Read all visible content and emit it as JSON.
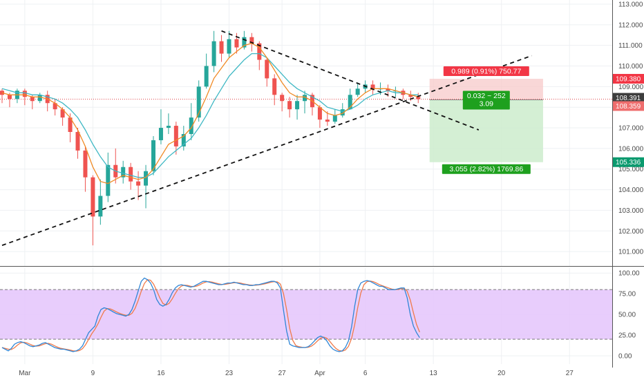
{
  "chart_data": {
    "type": "candlestick",
    "x_ticks": [
      "Mar",
      "9",
      "16",
      "23",
      "27",
      "Apr",
      "6",
      "13",
      "20",
      "27"
    ],
    "y_ticks": [
      "101.000",
      "102.000",
      "103.000",
      "104.000",
      "105.000",
      "106.000",
      "107.000",
      "108.000",
      "109.000",
      "110.000",
      "111.000",
      "112.000",
      "113.000"
    ],
    "ylim": [
      100.3,
      113.2
    ],
    "grid": true,
    "price_labels": {
      "stop_loss": "109.380",
      "current": "108.391",
      "entry": "108.359",
      "target": "105.336"
    },
    "colors": {
      "up": "#26a69a",
      "down": "#ef5350",
      "ma_fast": "#f08a24",
      "ma_slow": "#3fb8c4",
      "stop_box": "#f7c9c9",
      "target_box": "#cdeccd",
      "stop_tag": "#f23645",
      "profit_tag": "#1ea01e",
      "current_tag": "#3d3d3d",
      "entry_tag": "#ef6e6e",
      "target_tag": "#0a9a6e",
      "osc_band": "#e4c4fb",
      "osc_k": "#2f86d6",
      "osc_d": "#f07a4a"
    },
    "position": {
      "stop_text": "0.989 (0.91%) 750.77",
      "center_text": "0.032 ~ 252",
      "center_text2": "3.09",
      "target_text": "3.055 (2.82%) 1769.86"
    },
    "trendlines": [
      {
        "name": "lower-trendline",
        "points": [
          [
            0,
            101.3
          ],
          [
            70,
            110.5
          ]
        ]
      },
      {
        "name": "upper-trendline",
        "points": [
          [
            29,
            111.7
          ],
          [
            63,
            106.9
          ]
        ]
      }
    ],
    "candles": [
      [
        108.8,
        108.6,
        108.9,
        108.2
      ],
      [
        108.6,
        108.4,
        108.7,
        108.0
      ],
      [
        108.4,
        108.8,
        108.9,
        108.2
      ],
      [
        108.8,
        108.5,
        108.9,
        108.1
      ],
      [
        108.5,
        108.3,
        108.6,
        107.9
      ],
      [
        108.3,
        108.6,
        108.7,
        108.2
      ],
      [
        108.6,
        108.2,
        108.8,
        107.8
      ],
      [
        108.2,
        107.9,
        108.4,
        107.6
      ],
      [
        107.9,
        107.5,
        108.0,
        107.1
      ],
      [
        107.5,
        106.8,
        107.7,
        106.3
      ],
      [
        106.8,
        105.9,
        107.0,
        105.5
      ],
      [
        105.9,
        104.6,
        106.1,
        103.9
      ],
      [
        104.6,
        102.7,
        104.7,
        101.3
      ],
      [
        102.7,
        103.7,
        104.5,
        102.3
      ],
      [
        103.7,
        105.2,
        105.8,
        103.4
      ],
      [
        105.2,
        104.6,
        106.0,
        104.3
      ],
      [
        104.6,
        105.1,
        105.4,
        104.3
      ],
      [
        105.1,
        104.4,
        105.3,
        104.0
      ],
      [
        104.4,
        104.2,
        104.9,
        103.5
      ],
      [
        104.2,
        104.9,
        105.2,
        103.1
      ],
      [
        104.9,
        106.4,
        106.6,
        104.7
      ],
      [
        106.4,
        107.0,
        107.9,
        106.2
      ],
      [
        107.0,
        107.1,
        107.7,
        106.7
      ],
      [
        107.1,
        106.1,
        107.3,
        105.7
      ],
      [
        106.1,
        106.7,
        107.1,
        105.9
      ],
      [
        106.7,
        107.5,
        108.2,
        106.4
      ],
      [
        107.5,
        109.0,
        109.3,
        107.3
      ],
      [
        109.0,
        110.0,
        110.6,
        108.9
      ],
      [
        110.0,
        111.2,
        111.7,
        109.7
      ],
      [
        111.2,
        110.6,
        111.5,
        110.2
      ],
      [
        110.6,
        111.3,
        111.7,
        110.4
      ],
      [
        111.3,
        110.9,
        111.6,
        110.6
      ],
      [
        110.9,
        111.4,
        111.7,
        110.8
      ],
      [
        111.4,
        111.1,
        111.6,
        110.7
      ],
      [
        111.1,
        110.3,
        111.2,
        109.8
      ],
      [
        110.3,
        109.4,
        110.4,
        109.0
      ],
      [
        109.4,
        108.6,
        109.6,
        108.1
      ],
      [
        108.6,
        108.3,
        108.7,
        107.8
      ],
      [
        108.3,
        107.9,
        108.5,
        107.5
      ],
      [
        107.9,
        108.3,
        108.6,
        107.4
      ],
      [
        108.3,
        108.6,
        108.8,
        107.7
      ],
      [
        108.6,
        108.0,
        108.7,
        107.6
      ],
      [
        108.0,
        107.4,
        108.1,
        107.0
      ],
      [
        107.4,
        107.3,
        107.8,
        107.1
      ],
      [
        107.3,
        107.6,
        107.9,
        107.2
      ],
      [
        107.6,
        107.9,
        108.2,
        107.5
      ],
      [
        107.9,
        108.6,
        108.9,
        107.9
      ],
      [
        108.6,
        108.9,
        109.2,
        108.5
      ],
      [
        108.9,
        109.1,
        109.3,
        108.7
      ],
      [
        109.1,
        108.9,
        109.3,
        108.6
      ],
      [
        108.9,
        108.9,
        109.2,
        108.6
      ],
      [
        108.9,
        108.8,
        109.1,
        108.5
      ],
      [
        108.8,
        108.8,
        109.0,
        108.5
      ],
      [
        108.8,
        108.6,
        108.9,
        108.4
      ],
      [
        108.6,
        108.5,
        108.8,
        108.3
      ],
      [
        108.5,
        108.4,
        108.7,
        108.2
      ]
    ],
    "ma_fast": [
      108.7,
      108.6,
      108.6,
      108.6,
      108.5,
      108.5,
      108.4,
      108.2,
      107.9,
      107.5,
      106.9,
      106.1,
      105.1,
      104.4,
      104.3,
      104.5,
      104.7,
      104.6,
      104.5,
      104.6,
      105.0,
      105.6,
      106.2,
      106.4,
      106.6,
      107.0,
      107.7,
      108.5,
      109.4,
      109.9,
      110.4,
      110.7,
      111.0,
      111.1,
      110.9,
      110.4,
      109.8,
      109.2,
      108.7,
      108.5,
      108.5,
      108.3,
      108.0,
      107.7,
      107.6,
      107.7,
      108.0,
      108.4,
      108.7,
      108.9,
      108.9,
      108.9,
      108.8,
      108.7,
      108.6,
      108.5
    ],
    "ma_slow": [
      108.9,
      108.8,
      108.7,
      108.7,
      108.6,
      108.6,
      108.5,
      108.4,
      108.2,
      107.9,
      107.5,
      106.9,
      106.2,
      105.6,
      105.1,
      104.9,
      104.8,
      104.7,
      104.6,
      104.6,
      104.8,
      105.2,
      105.6,
      105.9,
      106.2,
      106.5,
      107.0,
      107.6,
      108.3,
      108.9,
      109.5,
      109.9,
      110.3,
      110.6,
      110.6,
      110.4,
      110.0,
      109.6,
      109.2,
      108.9,
      108.7,
      108.5,
      108.3,
      108.0,
      107.9,
      107.8,
      107.9,
      108.1,
      108.4,
      108.6,
      108.7,
      108.8,
      108.7,
      108.7,
      108.6,
      108.6
    ],
    "oscillator": {
      "y_ticks": [
        "100.00",
        "75.00",
        "50.00",
        "25.00",
        "0.00"
      ],
      "ylim": [
        -10,
        106
      ],
      "band": [
        20,
        80
      ],
      "k": [
        10,
        8,
        6,
        9,
        14,
        16,
        17,
        16,
        14,
        12,
        11,
        12,
        13,
        15,
        16,
        14,
        12,
        10,
        9,
        8,
        8,
        7,
        6,
        5,
        6,
        8,
        12,
        20,
        28,
        32,
        36,
        48,
        56,
        58,
        57,
        55,
        53,
        51,
        50,
        49,
        48,
        50,
        56,
        66,
        78,
        90,
        94,
        92,
        88,
        80,
        68,
        62,
        60,
        62,
        68,
        76,
        82,
        85,
        86,
        85,
        84,
        83,
        84,
        86,
        88,
        90,
        90,
        89,
        88,
        87,
        86,
        86,
        87,
        88,
        88,
        89,
        88,
        87,
        86,
        86,
        85,
        85,
        86,
        86,
        87,
        88,
        89,
        90,
        90,
        88,
        82,
        55,
        30,
        14,
        12,
        11,
        10,
        10,
        10,
        11,
        14,
        18,
        22,
        24,
        22,
        18,
        12,
        8,
        6,
        5,
        6,
        10,
        18,
        35,
        60,
        80,
        88,
        90,
        91,
        90,
        88,
        86,
        84,
        84,
        82,
        80,
        80,
        80,
        81,
        82,
        82,
        70,
        50,
        36,
        28,
        22
      ]
    }
  }
}
